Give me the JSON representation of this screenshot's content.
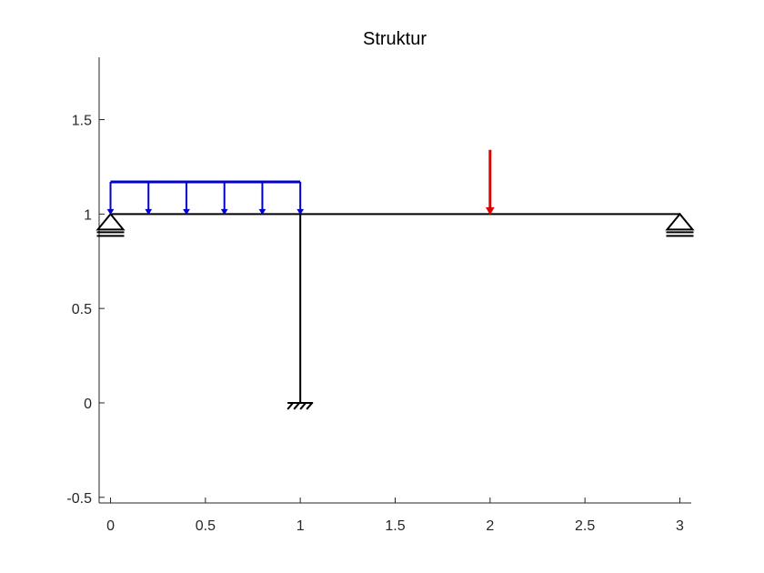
{
  "figure": {
    "title": "Struktur"
  },
  "colors": {
    "structure": "#000000",
    "distributed_load": "#0000cc",
    "point_load": "#e00000",
    "axis": "#262626"
  },
  "axes": {
    "xlim": [
      -0.06,
      3.06
    ],
    "ylim": [
      -0.53,
      1.83
    ],
    "xticks": [
      0,
      0.5,
      1,
      1.5,
      2,
      2.5,
      3
    ],
    "xtick_labels": [
      "0",
      "0.5",
      "1",
      "1.5",
      "2",
      "2.5",
      "3"
    ],
    "yticks": [
      -0.5,
      0,
      0.5,
      1,
      1.5
    ],
    "ytick_labels": [
      "-0.5",
      "0",
      "0.5",
      "1",
      "1.5"
    ]
  },
  "structure": {
    "members": [
      {
        "name": "beam",
        "from": [
          0,
          1
        ],
        "to": [
          3,
          1
        ]
      },
      {
        "name": "column",
        "from": [
          1,
          1
        ],
        "to": [
          1,
          0
        ]
      }
    ],
    "supports": [
      {
        "name": "pin-support-left",
        "type": "pinned",
        "at": [
          0,
          1
        ]
      },
      {
        "name": "pin-support-right",
        "type": "pinned",
        "at": [
          3,
          1
        ]
      },
      {
        "name": "fixed-support-base",
        "type": "fixed",
        "at": [
          1,
          0
        ]
      }
    ],
    "distributed_load": {
      "x_start": 0,
      "x_end": 1,
      "y_beam": 1,
      "y_top": 1.17,
      "arrow_x": [
        0,
        0.2,
        0.4,
        0.6,
        0.8,
        1.0
      ]
    },
    "point_load": {
      "x": 2,
      "y_tail": 1.34,
      "y_head": 1
    }
  }
}
